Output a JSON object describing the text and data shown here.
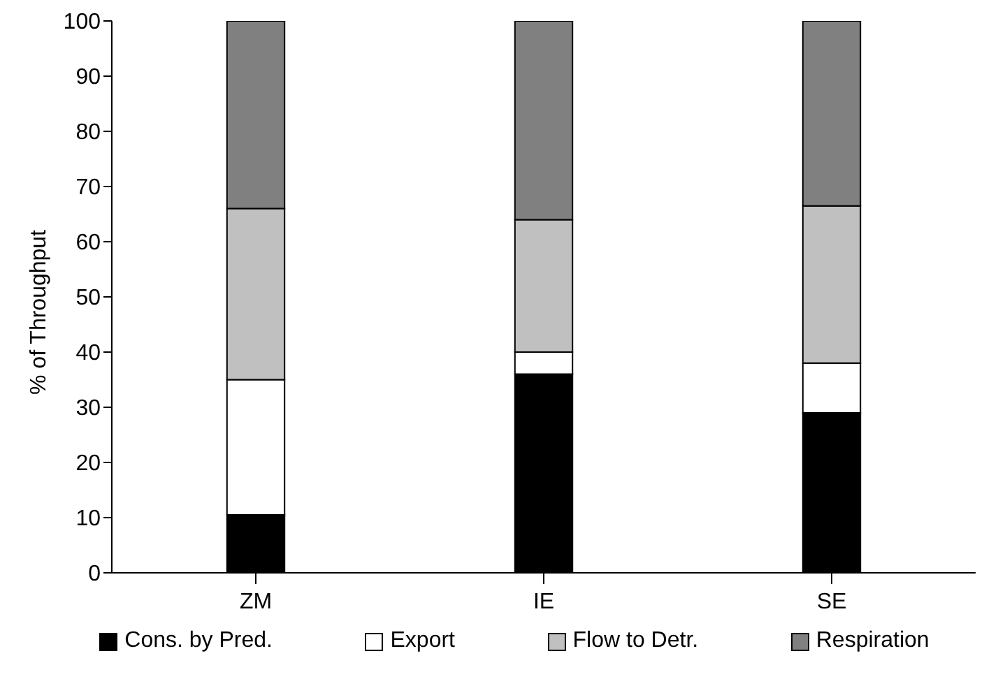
{
  "chart_data": {
    "type": "bar",
    "stacked": true,
    "ylabel": "% of Throughput",
    "categories": [
      "ZM",
      "IE",
      "SE"
    ],
    "series": [
      {
        "name": "Cons. by Pred.",
        "color": "#000000",
        "values": [
          10.5,
          36,
          29
        ]
      },
      {
        "name": "Export",
        "color": "#ffffff",
        "values": [
          24.5,
          4,
          9
        ]
      },
      {
        "name": "Flow to Detr.",
        "color": "#c0c0c0",
        "values": [
          31,
          24,
          28.5
        ]
      },
      {
        "name": "Respiration",
        "color": "#808080",
        "values": [
          34,
          36,
          33.5
        ]
      }
    ],
    "ylim": [
      0,
      100
    ],
    "yticks": [
      0,
      10,
      20,
      30,
      40,
      50,
      60,
      70,
      80,
      90,
      100
    ],
    "grid": false,
    "legend": "bottom"
  }
}
